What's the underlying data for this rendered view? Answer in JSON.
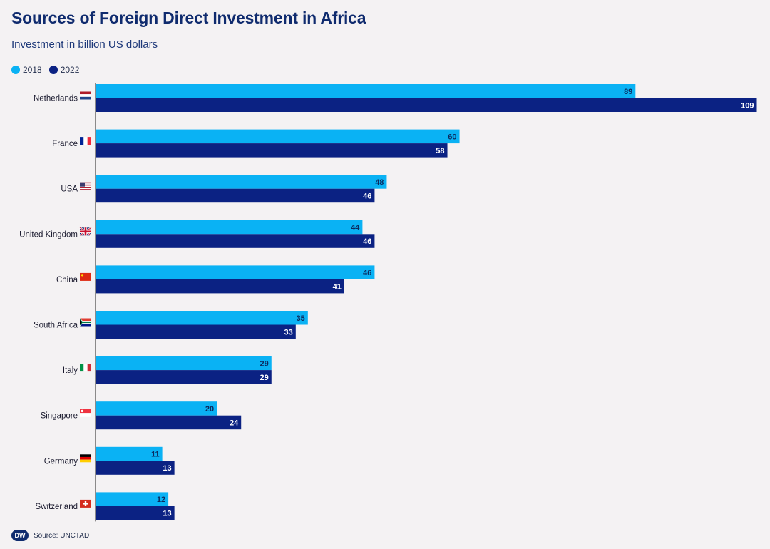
{
  "header": {
    "title": "Sources of Foreign Direct Investment in Africa",
    "subtitle": "Investment in billion US dollars"
  },
  "footer": {
    "logo_text": "DW",
    "source": "Source: UNCTAD"
  },
  "colors": {
    "series_2018": "#0ab2f4",
    "series_2022": "#0b2283",
    "flag_icons": [
      "netherlands-flag-icon",
      "france-flag-icon",
      "usa-flag-icon",
      "united-kingdom-flag-icon",
      "china-flag-icon",
      "south-africa-flag-icon",
      "italy-flag-icon",
      "singapore-flag-icon",
      "germany-flag-icon",
      "switzerland-flag-icon"
    ]
  },
  "chart_data": {
    "type": "bar",
    "orientation": "horizontal",
    "categories": [
      "Netherlands",
      "France",
      "USA",
      "United Kingdom",
      "China",
      "South Africa",
      "Italy",
      "Singapore",
      "Germany",
      "Switzerland"
    ],
    "series": [
      {
        "name": "2018",
        "values": [
          89,
          60,
          48,
          44,
          46,
          35,
          29,
          20,
          11,
          12
        ]
      },
      {
        "name": "2022",
        "values": [
          109,
          58,
          46,
          46,
          41,
          33,
          29,
          24,
          13,
          13
        ]
      }
    ],
    "xlim": [
      0,
      109
    ],
    "grid": false,
    "legend": "top-left"
  }
}
